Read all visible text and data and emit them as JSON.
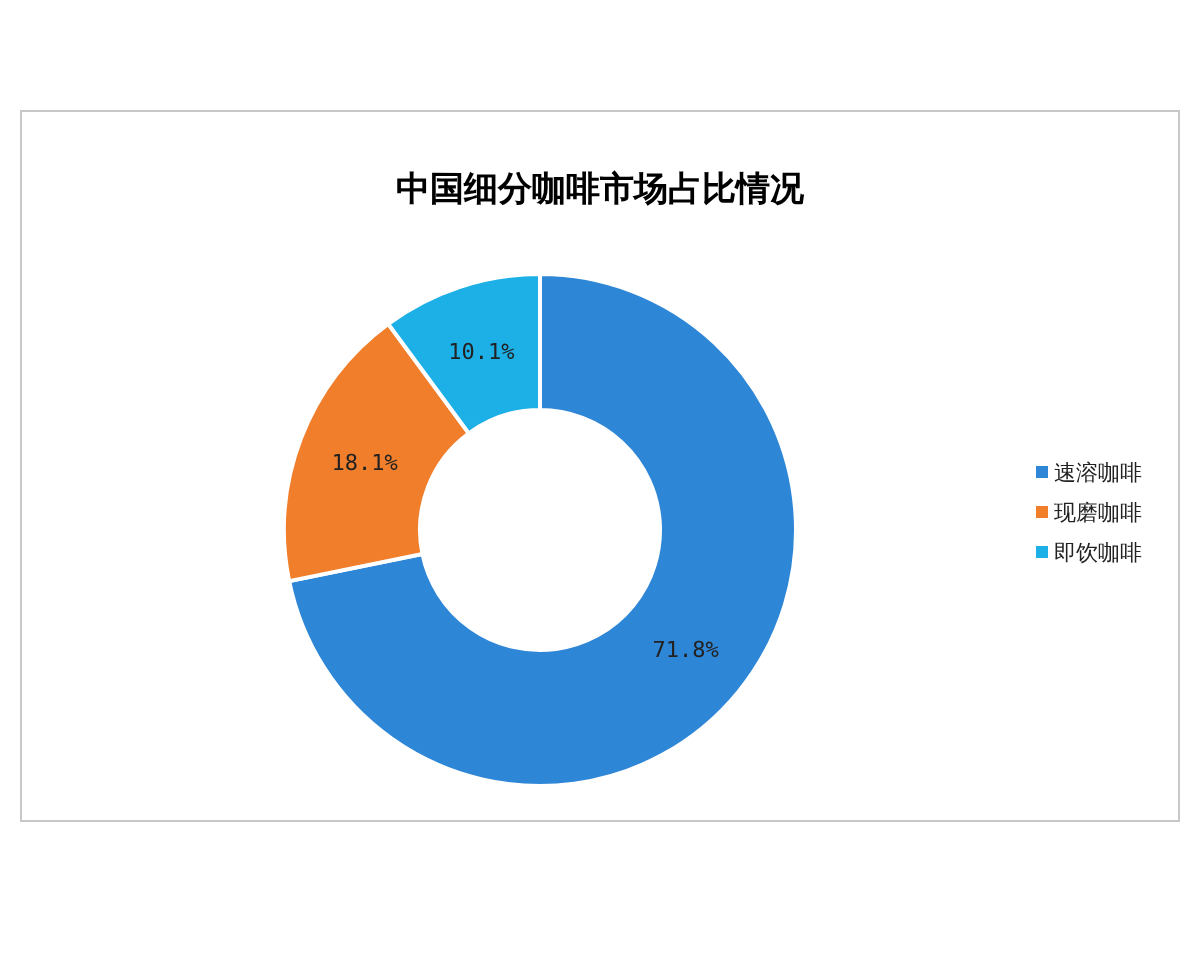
{
  "chart_data": {
    "type": "donut",
    "title": "中国细分咖啡市场占比情况",
    "categories": [
      "速溶咖啡",
      "现磨咖啡",
      "即饮咖啡"
    ],
    "values": [
      71.8,
      18.1,
      10.1
    ],
    "colors": [
      "#2e86d6",
      "#f07e2b",
      "#1cb0e6"
    ],
    "value_labels": [
      "71.8%",
      "18.1%",
      "10.1%"
    ],
    "legend": "right"
  }
}
